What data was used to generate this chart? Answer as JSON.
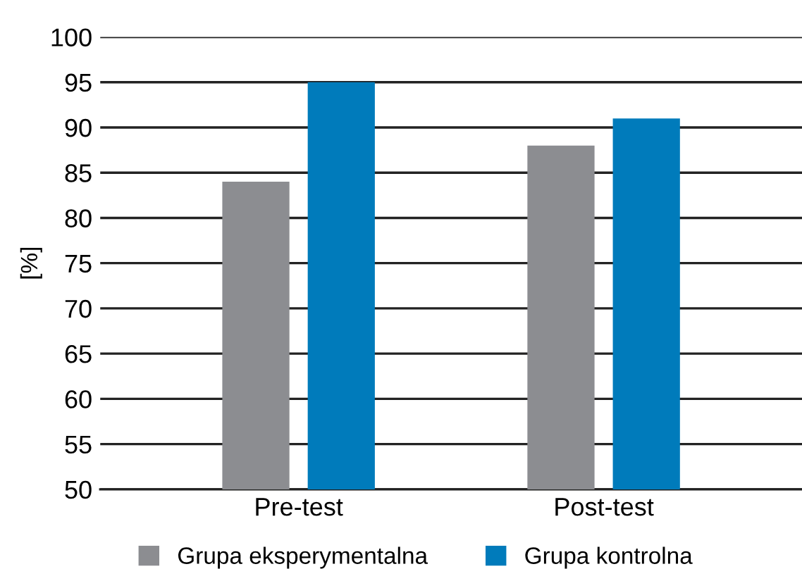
{
  "chart_data": {
    "type": "bar",
    "ylabel": "[%]",
    "categories": [
      "Pre-test",
      "Post-test"
    ],
    "series": [
      {
        "name": "Grupa eksperymentalna",
        "color": "#8c8d91",
        "values": [
          84,
          88
        ]
      },
      {
        "name": "Grupa kontrolna",
        "color": "#007bbb",
        "values": [
          95,
          91
        ]
      }
    ],
    "ylim": [
      50,
      100
    ],
    "yticks": [
      50,
      55,
      60,
      65,
      70,
      75,
      80,
      85,
      90,
      95,
      100
    ],
    "grid": "y",
    "legend": "bottom"
  }
}
